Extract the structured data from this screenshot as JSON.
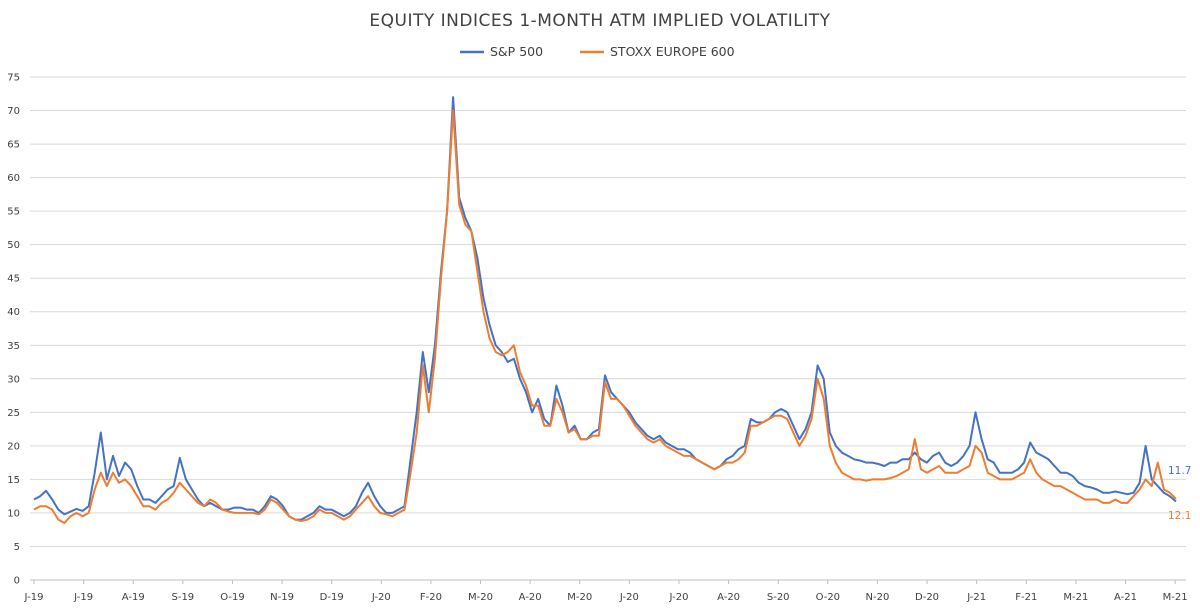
{
  "chart_data": {
    "type": "line",
    "title": "EQUITY INDICES 1-MONTH ATM IMPLIED VOLATILITY",
    "xlabel": "",
    "ylabel": "",
    "ylim": [
      0,
      75
    ],
    "y_ticks": [
      0,
      5,
      10,
      15,
      20,
      25,
      30,
      35,
      40,
      45,
      50,
      55,
      60,
      65,
      70,
      75
    ],
    "x_ticks": [
      "J-19",
      "J-19",
      "A-19",
      "S-19",
      "O-19",
      "N-19",
      "D-19",
      "J-20",
      "F-20",
      "M-20",
      "A-20",
      "M-20",
      "J-20",
      "J-20",
      "A-20",
      "S-20",
      "O-20",
      "N-20",
      "D-20",
      "J-21",
      "F-21",
      "M-21",
      "A-21",
      "M-21"
    ],
    "grid": "horizontal",
    "legend_position": "top-center",
    "series": [
      {
        "name": "S&P 500",
        "color": "#4472c4",
        "end_label": "11.7",
        "values": [
          12.0,
          12.5,
          13.3,
          12.0,
          10.5,
          9.8,
          10.2,
          10.6,
          10.3,
          11.0,
          16.0,
          22.0,
          15.0,
          18.5,
          15.5,
          17.5,
          16.5,
          14.0,
          12.0,
          12.0,
          11.5,
          12.5,
          13.5,
          14.0,
          18.2,
          15.0,
          13.5,
          12.0,
          11.0,
          11.5,
          11.0,
          10.5,
          10.5,
          10.8,
          10.8,
          10.5,
          10.5,
          10.0,
          11.0,
          12.5,
          12.0,
          11.0,
          9.5,
          9.0,
          9.0,
          9.5,
          10.0,
          11.0,
          10.5,
          10.5,
          10.0,
          9.5,
          10.0,
          11.0,
          13.0,
          14.5,
          12.5,
          11.0,
          10.0,
          10.0,
          10.5,
          11.0,
          18.0,
          25.0,
          34.0,
          28.0,
          35.0,
          46.0,
          55.0,
          72.0,
          57.0,
          54.0,
          52.0,
          48.0,
          42.0,
          38.0,
          35.0,
          34.0,
          32.5,
          33.0,
          30.0,
          28.0,
          25.0,
          27.0,
          24.0,
          23.0,
          29.0,
          26.0,
          22.0,
          23.0,
          21.0,
          21.0,
          22.0,
          22.5,
          30.5,
          28.0,
          27.0,
          26.0,
          25.0,
          23.5,
          22.5,
          21.5,
          21.0,
          21.5,
          20.5,
          20.0,
          19.5,
          19.5,
          19.0,
          18.0,
          17.5,
          17.0,
          16.5,
          17.0,
          18.0,
          18.5,
          19.5,
          20.0,
          24.0,
          23.5,
          23.5,
          24.0,
          25.0,
          25.5,
          25.0,
          23.0,
          21.0,
          22.5,
          25.0,
          32.0,
          30.0,
          22.0,
          20.0,
          19.0,
          18.5,
          18.0,
          17.8,
          17.5,
          17.5,
          17.3,
          17.0,
          17.5,
          17.5,
          18.0,
          18.0,
          19.0,
          18.0,
          17.5,
          18.5,
          19.0,
          17.5,
          17.0,
          17.5,
          18.5,
          20.0,
          25.0,
          21.0,
          18.0,
          17.5,
          16.0,
          16.0,
          16.0,
          16.5,
          17.5,
          20.5,
          19.0,
          18.5,
          18.0,
          17.0,
          16.0,
          16.0,
          15.5,
          14.5,
          14.0,
          13.8,
          13.5,
          13.0,
          13.0,
          13.2,
          13.0,
          12.8,
          13.0,
          14.5,
          20.0,
          15.0,
          14.0,
          13.0,
          12.5,
          11.7
        ]
      },
      {
        "name": "STOXX EUROPE 600",
        "color": "#ed7d31",
        "end_label": "12.1",
        "values": [
          10.5,
          11.0,
          11.0,
          10.5,
          9.0,
          8.5,
          9.5,
          10.0,
          9.5,
          10.0,
          13.5,
          16.0,
          14.0,
          16.0,
          14.5,
          15.0,
          14.0,
          12.5,
          11.0,
          11.0,
          10.5,
          11.5,
          12.0,
          13.0,
          14.5,
          13.5,
          12.5,
          11.5,
          11.0,
          12.0,
          11.5,
          10.5,
          10.2,
          10.0,
          10.0,
          10.0,
          10.0,
          9.8,
          10.5,
          12.0,
          11.5,
          10.5,
          9.5,
          9.0,
          8.8,
          9.0,
          9.5,
          10.5,
          10.0,
          10.0,
          9.5,
          9.0,
          9.5,
          10.5,
          11.5,
          12.5,
          11.0,
          10.0,
          9.8,
          9.5,
          10.0,
          10.5,
          16.0,
          22.0,
          32.0,
          25.0,
          33.0,
          45.0,
          55.0,
          70.0,
          56.0,
          53.0,
          52.0,
          46.0,
          40.0,
          36.0,
          34.0,
          33.5,
          34.0,
          35.0,
          31.0,
          29.0,
          26.0,
          26.0,
          23.0,
          23.0,
          27.0,
          25.0,
          22.0,
          22.5,
          21.0,
          21.0,
          21.5,
          21.5,
          29.5,
          27.0,
          27.0,
          26.0,
          24.5,
          23.0,
          22.0,
          21.0,
          20.5,
          21.0,
          20.0,
          19.5,
          19.0,
          18.5,
          18.5,
          18.0,
          17.5,
          17.0,
          16.5,
          17.0,
          17.5,
          17.5,
          18.0,
          19.0,
          23.0,
          23.0,
          23.5,
          24.0,
          24.5,
          24.5,
          24.0,
          22.0,
          20.0,
          21.5,
          24.0,
          30.0,
          27.0,
          20.0,
          17.5,
          16.0,
          15.5,
          15.0,
          15.0,
          14.8,
          15.0,
          15.0,
          15.0,
          15.2,
          15.5,
          16.0,
          16.5,
          21.0,
          16.5,
          16.0,
          16.5,
          17.0,
          16.0,
          16.0,
          16.0,
          16.5,
          17.0,
          20.0,
          19.0,
          16.0,
          15.5,
          15.0,
          15.0,
          15.0,
          15.5,
          16.0,
          18.0,
          16.0,
          15.0,
          14.5,
          14.0,
          14.0,
          13.5,
          13.0,
          12.5,
          12.0,
          12.0,
          12.0,
          11.5,
          11.5,
          12.0,
          11.5,
          11.5,
          12.5,
          13.5,
          15.0,
          14.0,
          17.5,
          13.5,
          13.0,
          12.1
        ]
      }
    ]
  }
}
